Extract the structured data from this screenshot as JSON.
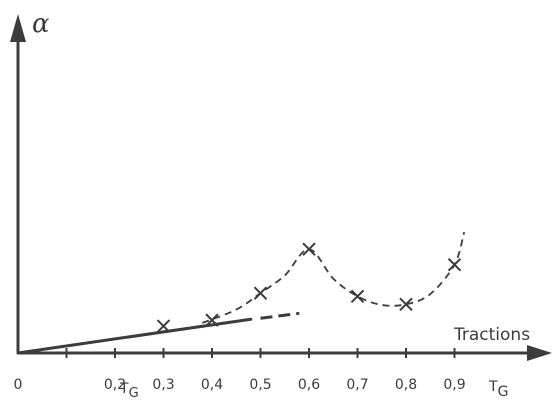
{
  "chart_data": {
    "type": "scatter",
    "title": "",
    "xlabel": "Tractions",
    "ylabel": "α",
    "x_axis_unit": "T_G",
    "xlim": [
      0,
      1.0
    ],
    "ylim": [
      0,
      1.0
    ],
    "grid": false,
    "legend": "none",
    "ticks": [
      {
        "value": 0.0,
        "label": "0"
      },
      {
        "value": 0.1,
        "label": ""
      },
      {
        "value": 0.2,
        "label": "0,2"
      },
      {
        "value": 0.3,
        "label": "0,3"
      },
      {
        "value": 0.4,
        "label": "0,4"
      },
      {
        "value": 0.5,
        "label": "0,5"
      },
      {
        "value": 0.6,
        "label": "0,6"
      },
      {
        "value": 0.7,
        "label": "0,7"
      },
      {
        "value": 0.8,
        "label": "0,8"
      },
      {
        "value": 0.9,
        "label": "0,9"
      }
    ],
    "tick_annotation": {
      "text": "T",
      "subscript": "G",
      "at": 0.23
    },
    "axis_end_label": {
      "text": "T",
      "subscript": "G"
    },
    "points": [
      {
        "x": 0.3,
        "y": 0.087
      },
      {
        "x": 0.4,
        "y": 0.106
      },
      {
        "x": 0.5,
        "y": 0.193
      },
      {
        "x": 0.6,
        "y": 0.335
      },
      {
        "x": 0.7,
        "y": 0.183
      },
      {
        "x": 0.8,
        "y": 0.157
      },
      {
        "x": 0.9,
        "y": 0.285
      }
    ],
    "solid_line": [
      {
        "x": 0.0,
        "y": 0.0
      },
      {
        "x": 0.48,
        "y": 0.109
      }
    ],
    "dashed_extension": [
      {
        "x": 0.5,
        "y": 0.112
      },
      {
        "x": 0.58,
        "y": 0.128
      }
    ],
    "dashed_curve": [
      {
        "x": 0.38,
        "y": 0.097
      },
      {
        "x": 0.45,
        "y": 0.14
      },
      {
        "x": 0.5,
        "y": 0.193
      },
      {
        "x": 0.55,
        "y": 0.25
      },
      {
        "x": 0.6,
        "y": 0.335
      },
      {
        "x": 0.65,
        "y": 0.24
      },
      {
        "x": 0.7,
        "y": 0.183
      },
      {
        "x": 0.75,
        "y": 0.155
      },
      {
        "x": 0.8,
        "y": 0.157
      },
      {
        "x": 0.85,
        "y": 0.19
      },
      {
        "x": 0.9,
        "y": 0.285
      },
      {
        "x": 0.92,
        "y": 0.39
      }
    ],
    "ink_color": "#3c3c3c"
  }
}
